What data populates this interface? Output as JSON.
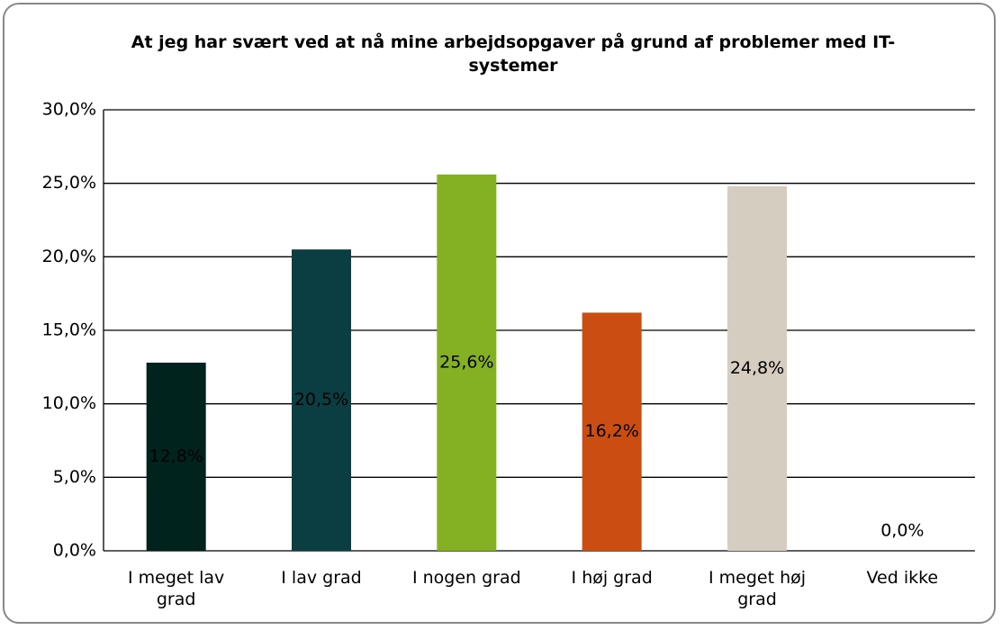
{
  "chart_data": {
    "type": "bar",
    "title": "At jeg har svært ved at nå mine arbejdsopgaver på grund af problemer med IT-systemer",
    "categories": [
      "I meget lav grad",
      "I lav grad",
      "I nogen grad",
      "I høj grad",
      "I meget høj grad",
      "Ved ikke"
    ],
    "values": [
      12.8,
      20.5,
      25.6,
      16.2,
      24.8,
      0.0
    ],
    "value_labels": [
      "12,8%",
      "20,5%",
      "25,6%",
      "16,2%",
      "24,8%",
      "0,0%"
    ],
    "colors": [
      "#00231e",
      "#0b3e42",
      "#84b024",
      "#cb4d12",
      "#d4cdc0",
      "#e0e0e0"
    ],
    "ylim": [
      0,
      30
    ],
    "yticks": [
      {
        "value": 0,
        "label": "0,0%"
      },
      {
        "value": 5,
        "label": "5,0%"
      },
      {
        "value": 10,
        "label": "10,0%"
      },
      {
        "value": 15,
        "label": "15,0%"
      },
      {
        "value": 20,
        "label": "20,0%"
      },
      {
        "value": 25,
        "label": "25,0%"
      },
      {
        "value": 30,
        "label": "30,0%"
      }
    ],
    "grid": true
  }
}
